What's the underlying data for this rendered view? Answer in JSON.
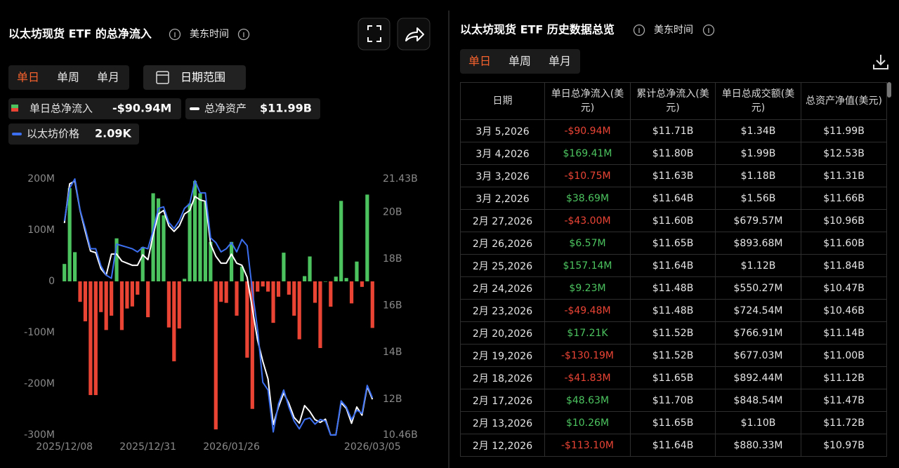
{
  "left_panel": {
    "title": "以太坊现货 ETF 的总净流入",
    "timezone": "美东时间",
    "tabs": [
      "单日",
      "单周",
      "单月"
    ],
    "date_range": "日期范围"
  },
  "chart_data": {
    "type": "bar",
    "categories": [
      "2025/12/08",
      null,
      null,
      null,
      null,
      null,
      null,
      null,
      null,
      null,
      null,
      null,
      null,
      null,
      null,
      null,
      "2025/12/31",
      null,
      null,
      null,
      null,
      null,
      null,
      null,
      null,
      null,
      null,
      null,
      null,
      null,
      null,
      null,
      "2026/01/26",
      null,
      null,
      null,
      null,
      null,
      null,
      null,
      null,
      null,
      null,
      null,
      null,
      null,
      null,
      null,
      null,
      null,
      null,
      null,
      null,
      null,
      null,
      null,
      null,
      null,
      null,
      "2026/03/05"
    ],
    "ylim": [
      -300,
      200
    ],
    "yticks": [
      {
        "value": -300,
        "label": "-300M"
      },
      {
        "value": -200,
        "label": "-200M"
      },
      {
        "value": -100,
        "label": "-100M"
      },
      0,
      {
        "value": 100,
        "label": "100M"
      },
      {
        "value": 200,
        "label": "200M"
      }
    ],
    "y2lim": [
      10.46,
      21.43
    ],
    "y2ticks": [
      {
        "value": 10.46,
        "label": "10.46B"
      },
      {
        "value": 12,
        "label": "12B"
      },
      {
        "value": 14,
        "label": "14B"
      },
      {
        "value": 16,
        "label": "16B"
      },
      {
        "value": 18,
        "label": "18B"
      },
      {
        "value": 20,
        "label": "20B"
      },
      {
        "value": 21.43,
        "label": "21.43B"
      }
    ],
    "y3lim": [
      1.85,
      3.5
    ],
    "grid": false,
    "series": [
      {
        "name": "单日总净流入",
        "type": "bar",
        "positive_color": "#4cc35f",
        "negative_color": "#ea4435",
        "legend_value": "-$90.94M",
        "values": [
          34,
          182,
          57,
          -40,
          -78,
          -222,
          -222,
          -60,
          -95,
          -67,
          84,
          -95,
          -53,
          -49,
          -26,
          67,
          -70,
          172,
          162,
          129,
          -90,
          -156,
          -92,
          5,
          152,
          196,
          172,
          155,
          77,
          -289,
          -40,
          -42,
          77,
          -67,
          29,
          -149,
          -249,
          -20,
          -10,
          -20,
          -81,
          -30,
          56,
          -26,
          -67,
          -113.1,
          10.26,
          48.63,
          -41.83,
          -130.19,
          0.01721,
          -49.48,
          9.23,
          157.14,
          6.57,
          -43.0,
          38.69,
          -10.75,
          169.41,
          -90.94
        ]
      },
      {
        "name": "总净资产",
        "type": "line",
        "axis": "y2",
        "color": "#ffffff",
        "legend_value": "$11.99B",
        "values": [
          19.54,
          21.22,
          21.34,
          20.08,
          19.18,
          18.34,
          18.27,
          17.58,
          17.31,
          18.21,
          18.21,
          17.91,
          17.82,
          17.73,
          17.73,
          18.18,
          17.97,
          19.03,
          19.93,
          20.08,
          19.42,
          19.18,
          19.42,
          19.93,
          20.08,
          20.68,
          20.53,
          20.47,
          18.64,
          18.12,
          17.82,
          17.82,
          18.21,
          17.82,
          17.73,
          17.22,
          15.87,
          14.52,
          13.62,
          12.86,
          10.91,
          11.66,
          12.26,
          11.81,
          11.21,
          10.97,
          11.72,
          11.47,
          11.12,
          11.0,
          11.14,
          10.46,
          10.47,
          11.84,
          11.6,
          10.96,
          11.66,
          11.31,
          12.53,
          11.99
        ]
      },
      {
        "name": "以太坊价格",
        "type": "line",
        "axis": "y3",
        "color": "#3c6ff0",
        "legend_value": "2.09K",
        "values": [
          3.23,
          3.44,
          3.5,
          3.3,
          3.18,
          3.05,
          3.05,
          2.94,
          2.88,
          2.86,
          3.08,
          3.07,
          3.06,
          3.05,
          3.03,
          3.06,
          3.05,
          3.17,
          3.31,
          3.32,
          3.22,
          3.18,
          3.23,
          3.31,
          3.34,
          3.49,
          3.41,
          3.41,
          3.12,
          3.09,
          3.03,
          3.05,
          3.09,
          3.03,
          3.11,
          3.07,
          2.78,
          2.53,
          2.19,
          2.14,
          1.87,
          2.05,
          2.14,
          2.03,
          1.94,
          1.89,
          1.95,
          1.96,
          1.92,
          1.95,
          1.94,
          1.85,
          1.85,
          2.07,
          2.03,
          1.95,
          2.01,
          1.99,
          2.17,
          2.09
        ]
      }
    ]
  },
  "right_panel": {
    "title": "以太坊现货 ETF 历史数据总览",
    "timezone": "美东时间",
    "tabs": [
      "单日",
      "单周",
      "单月"
    ],
    "table": {
      "columns": [
        "日期",
        "单日总净流入(美元)",
        "累计总净流入(美元)",
        "单日总成交额(美元)",
        "总资产净值(美元)"
      ],
      "rows": [
        [
          "3月 5,2026",
          "-$90.94M",
          "$11.71B",
          "$1.34B",
          "$11.99B"
        ],
        [
          "3月 4,2026",
          "$169.41M",
          "$11.80B",
          "$1.99B",
          "$12.53B"
        ],
        [
          "3月 3,2026",
          "-$10.75M",
          "$11.63B",
          "$1.18B",
          "$11.31B"
        ],
        [
          "3月 2,2026",
          "$38.69M",
          "$11.64B",
          "$1.56B",
          "$11.66B"
        ],
        [
          "2月 27,2026",
          "-$43.00M",
          "$11.60B",
          "$679.57M",
          "$10.96B"
        ],
        [
          "2月 26,2026",
          "$6.57M",
          "$11.65B",
          "$893.68M",
          "$11.60B"
        ],
        [
          "2月 25,2026",
          "$157.14M",
          "$11.64B",
          "$1.12B",
          "$11.84B"
        ],
        [
          "2月 24,2026",
          "$9.23M",
          "$11.48B",
          "$550.27M",
          "$10.47B"
        ],
        [
          "2月 23,2026",
          "-$49.48M",
          "$11.48B",
          "$724.54M",
          "$10.46B"
        ],
        [
          "2月 20,2026",
          "$17.21K",
          "$11.52B",
          "$766.91M",
          "$11.14B"
        ],
        [
          "2月 19,2026",
          "-$130.19M",
          "$11.52B",
          "$677.03M",
          "$11.00B"
        ],
        [
          "2月 18,2026",
          "-$41.83M",
          "$11.65B",
          "$892.44M",
          "$11.12B"
        ],
        [
          "2月 17,2026",
          "$48.63M",
          "$11.70B",
          "$848.54M",
          "$11.47B"
        ],
        [
          "2月 13,2026",
          "$10.26M",
          "$11.65B",
          "$1.10B",
          "$11.72B"
        ],
        [
          "2月 12,2026",
          "-$113.10M",
          "$11.64B",
          "$880.33M",
          "$10.97B"
        ]
      ]
    }
  }
}
